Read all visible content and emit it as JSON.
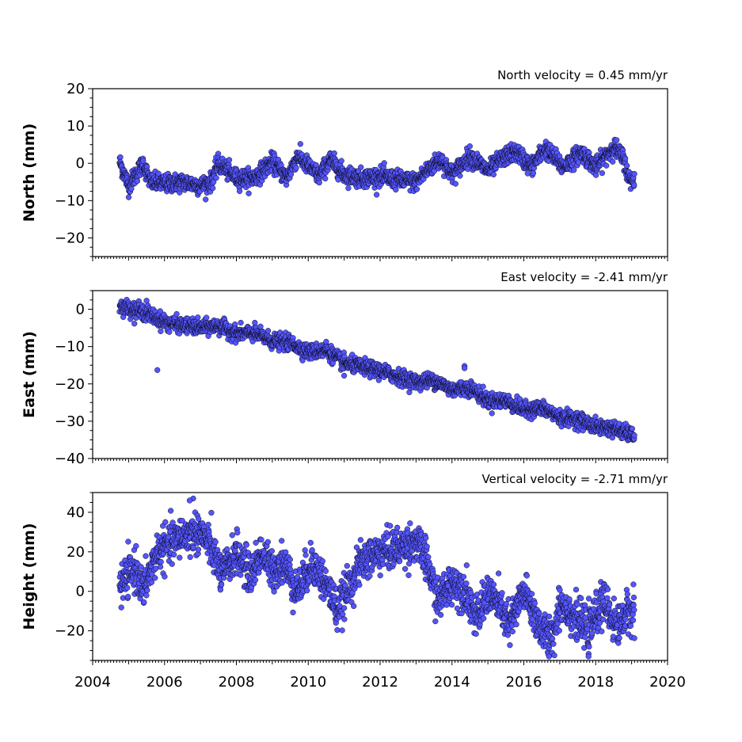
{
  "chart_data": [
    {
      "type": "scatter",
      "title": "North velocity = 0.45 mm/yr",
      "ylabel": "North (mm)",
      "xlim": [
        2004,
        2020
      ],
      "ylim": [
        -25,
        20
      ],
      "yticks": [
        20,
        10,
        0,
        -10,
        -20
      ],
      "grid": false,
      "series": [
        {
          "marker_color": "#5555ff",
          "x_start": 2004.75,
          "x_end": 2019.08,
          "trend_mm_per_yr": 0.45,
          "knots": [
            [
              2004.75,
              0.5
            ],
            [
              2005.0,
              -6.0
            ],
            [
              2005.4,
              0.0
            ],
            [
              2005.6,
              -5.0
            ],
            [
              2006.0,
              -5.5
            ],
            [
              2006.5,
              -5.0
            ],
            [
              2007.0,
              -6.0
            ],
            [
              2007.3,
              -5.0
            ],
            [
              2007.5,
              0.0
            ],
            [
              2008.0,
              -4.0
            ],
            [
              2008.5,
              -4.0
            ],
            [
              2009.0,
              0.5
            ],
            [
              2009.4,
              -4.0
            ],
            [
              2009.7,
              2.0
            ],
            [
              2010.3,
              -3.5
            ],
            [
              2010.6,
              1.0
            ],
            [
              2011.0,
              -3.0
            ],
            [
              2011.5,
              -4.0
            ],
            [
              2012.0,
              -3.5
            ],
            [
              2012.5,
              -4.5
            ],
            [
              2013.0,
              -5.0
            ],
            [
              2013.4,
              -1.0
            ],
            [
              2013.7,
              1.0
            ],
            [
              2014.0,
              -3.0
            ],
            [
              2014.5,
              2.0
            ],
            [
              2015.0,
              -2.0
            ],
            [
              2015.5,
              2.0
            ],
            [
              2015.8,
              3.0
            ],
            [
              2016.2,
              -1.0
            ],
            [
              2016.6,
              4.0
            ],
            [
              2017.1,
              -1.0
            ],
            [
              2017.6,
              3.0
            ],
            [
              2018.0,
              -1.0
            ],
            [
              2018.5,
              4.5
            ],
            [
              2018.8,
              1.0
            ],
            [
              2018.9,
              -4.0
            ],
            [
              2019.08,
              -4.5
            ]
          ],
          "scatter_mm": 1.2,
          "outliers": []
        }
      ]
    },
    {
      "type": "scatter",
      "title": "East velocity = -2.41 mm/yr",
      "ylabel": "East (mm)",
      "xlim": [
        2004,
        2020
      ],
      "ylim": [
        -40,
        5
      ],
      "yticks": [
        0,
        -10,
        -20,
        -30,
        -40
      ],
      "grid": false,
      "series": [
        {
          "marker_color": "#5555ff",
          "x_start": 2004.75,
          "x_end": 2019.08,
          "trend_mm_per_yr": -2.41,
          "knots": [
            [
              2004.75,
              1.0
            ],
            [
              2005.5,
              -1.0
            ],
            [
              2006.0,
              -3.5
            ],
            [
              2007.0,
              -5.0
            ],
            [
              2007.5,
              -4.5
            ],
            [
              2008.0,
              -6.5
            ],
            [
              2008.5,
              -6.5
            ],
            [
              2009.0,
              -8.5
            ],
            [
              2009.5,
              -9.0
            ],
            [
              2010.0,
              -11.5
            ],
            [
              2010.5,
              -11.0
            ],
            [
              2011.0,
              -14.5
            ],
            [
              2012.0,
              -16.5
            ],
            [
              2012.5,
              -18.0
            ],
            [
              2013.0,
              -19.5
            ],
            [
              2013.5,
              -19.0
            ],
            [
              2014.0,
              -21.5
            ],
            [
              2014.5,
              -21.0
            ],
            [
              2015.0,
              -24.5
            ],
            [
              2015.5,
              -24.5
            ],
            [
              2016.0,
              -27.0
            ],
            [
              2016.5,
              -26.5
            ],
            [
              2017.0,
              -29.0
            ],
            [
              2017.5,
              -29.5
            ],
            [
              2018.0,
              -31.5
            ],
            [
              2018.5,
              -32.0
            ],
            [
              2019.08,
              -34.0
            ]
          ],
          "scatter_mm": 1.0,
          "outliers": [
            [
              2005.8,
              -16.3
            ],
            [
              2005.5,
              2.3
            ],
            [
              2014.35,
              -15.2
            ],
            [
              2014.35,
              -15.8
            ],
            [
              2010.5,
              -8.7
            ],
            [
              2011.0,
              -17.8
            ]
          ]
        }
      ]
    },
    {
      "type": "scatter",
      "title": "Vertical velocity = -2.71 mm/yr",
      "ylabel": "Height (mm)",
      "xlim": [
        2004,
        2020
      ],
      "ylim": [
        -35,
        50
      ],
      "xticks": [
        2004,
        2006,
        2008,
        2010,
        2012,
        2014,
        2016,
        2018,
        2020
      ],
      "yticks": [
        40,
        20,
        0,
        -20
      ],
      "grid": false,
      "series": [
        {
          "marker_color": "#5555ff",
          "x_start": 2004.75,
          "x_end": 2019.08,
          "trend_mm_per_yr": -2.71,
          "knots": [
            [
              2004.75,
              2.0
            ],
            [
              2005.2,
              12.0
            ],
            [
              2005.4,
              0.0
            ],
            [
              2005.8,
              20.0
            ],
            [
              2006.5,
              28.0
            ],
            [
              2007.0,
              30.0
            ],
            [
              2007.3,
              22.0
            ],
            [
              2007.6,
              8.0
            ],
            [
              2008.0,
              20.0
            ],
            [
              2008.4,
              8.0
            ],
            [
              2008.7,
              20.0
            ],
            [
              2009.0,
              10.0
            ],
            [
              2009.3,
              15.0
            ],
            [
              2009.7,
              0.0
            ],
            [
              2010.1,
              15.0
            ],
            [
              2010.6,
              0.0
            ],
            [
              2010.8,
              -10.0
            ],
            [
              2011.2,
              5.0
            ],
            [
              2011.5,
              15.0
            ],
            [
              2012.0,
              20.0
            ],
            [
              2012.5,
              22.0
            ],
            [
              2013.0,
              25.0
            ],
            [
              2013.3,
              15.0
            ],
            [
              2013.6,
              -5.0
            ],
            [
              2014.0,
              5.0
            ],
            [
              2014.4,
              0.0
            ],
            [
              2014.7,
              -15.0
            ],
            [
              2015.0,
              0.0
            ],
            [
              2015.4,
              -10.0
            ],
            [
              2015.6,
              -18.0
            ],
            [
              2016.0,
              0.0
            ],
            [
              2016.5,
              -20.0
            ],
            [
              2016.8,
              -25.0
            ],
            [
              2017.0,
              -5.0
            ],
            [
              2017.5,
              -15.0
            ],
            [
              2017.8,
              -20.0
            ],
            [
              2018.2,
              -5.0
            ],
            [
              2018.6,
              -18.0
            ],
            [
              2018.9,
              -10.0
            ],
            [
              2019.08,
              -12.0
            ]
          ],
          "scatter_mm": 5.0,
          "outliers": [
            [
              2006.8,
              47.0
            ],
            [
              2006.7,
              46.0
            ],
            [
              2016.7,
              -33.0
            ],
            [
              2017.8,
              -33.0
            ],
            [
              2019.05,
              3.5
            ]
          ]
        }
      ]
    }
  ]
}
